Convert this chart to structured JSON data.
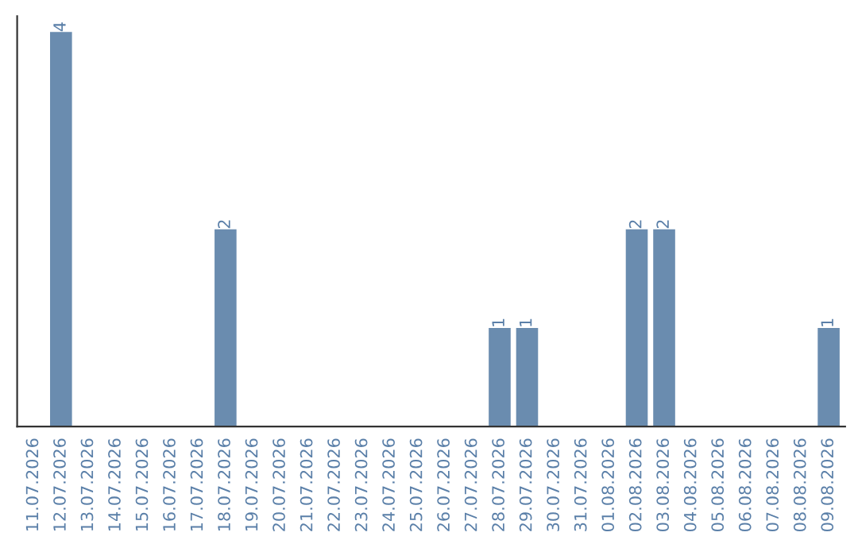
{
  "chart_data": {
    "type": "bar",
    "categories": [
      "11.07.2026",
      "12.07.2026",
      "13.07.2026",
      "14.07.2026",
      "15.07.2026",
      "16.07.2026",
      "17.07.2026",
      "18.07.2026",
      "19.07.2026",
      "20.07.2026",
      "21.07.2026",
      "22.07.2026",
      "23.07.2026",
      "24.07.2026",
      "25.07.2026",
      "26.07.2026",
      "27.07.2026",
      "28.07.2026",
      "29.07.2026",
      "30.07.2026",
      "31.07.2026",
      "01.08.2026",
      "02.08.2026",
      "03.08.2026",
      "04.08.2026",
      "05.08.2026",
      "06.08.2026",
      "07.08.2026",
      "08.08.2026",
      "09.08.2026"
    ],
    "values": [
      0,
      4,
      0,
      0,
      0,
      0,
      0,
      2,
      0,
      0,
      0,
      0,
      0,
      0,
      0,
      0,
      0,
      1,
      1,
      0,
      0,
      0,
      2,
      2,
      0,
      0,
      0,
      0,
      0,
      1
    ],
    "value_labels": [
      null,
      "4",
      null,
      null,
      null,
      null,
      null,
      "2",
      null,
      null,
      null,
      null,
      null,
      null,
      null,
      null,
      null,
      "1",
      "1",
      null,
      null,
      null,
      "2",
      "2",
      null,
      null,
      null,
      null,
      null,
      "1"
    ],
    "color": "#6a8caf",
    "ylim": [
      0,
      4.16
    ],
    "tick_labels": "x",
    "grid": false,
    "legend": false
  }
}
